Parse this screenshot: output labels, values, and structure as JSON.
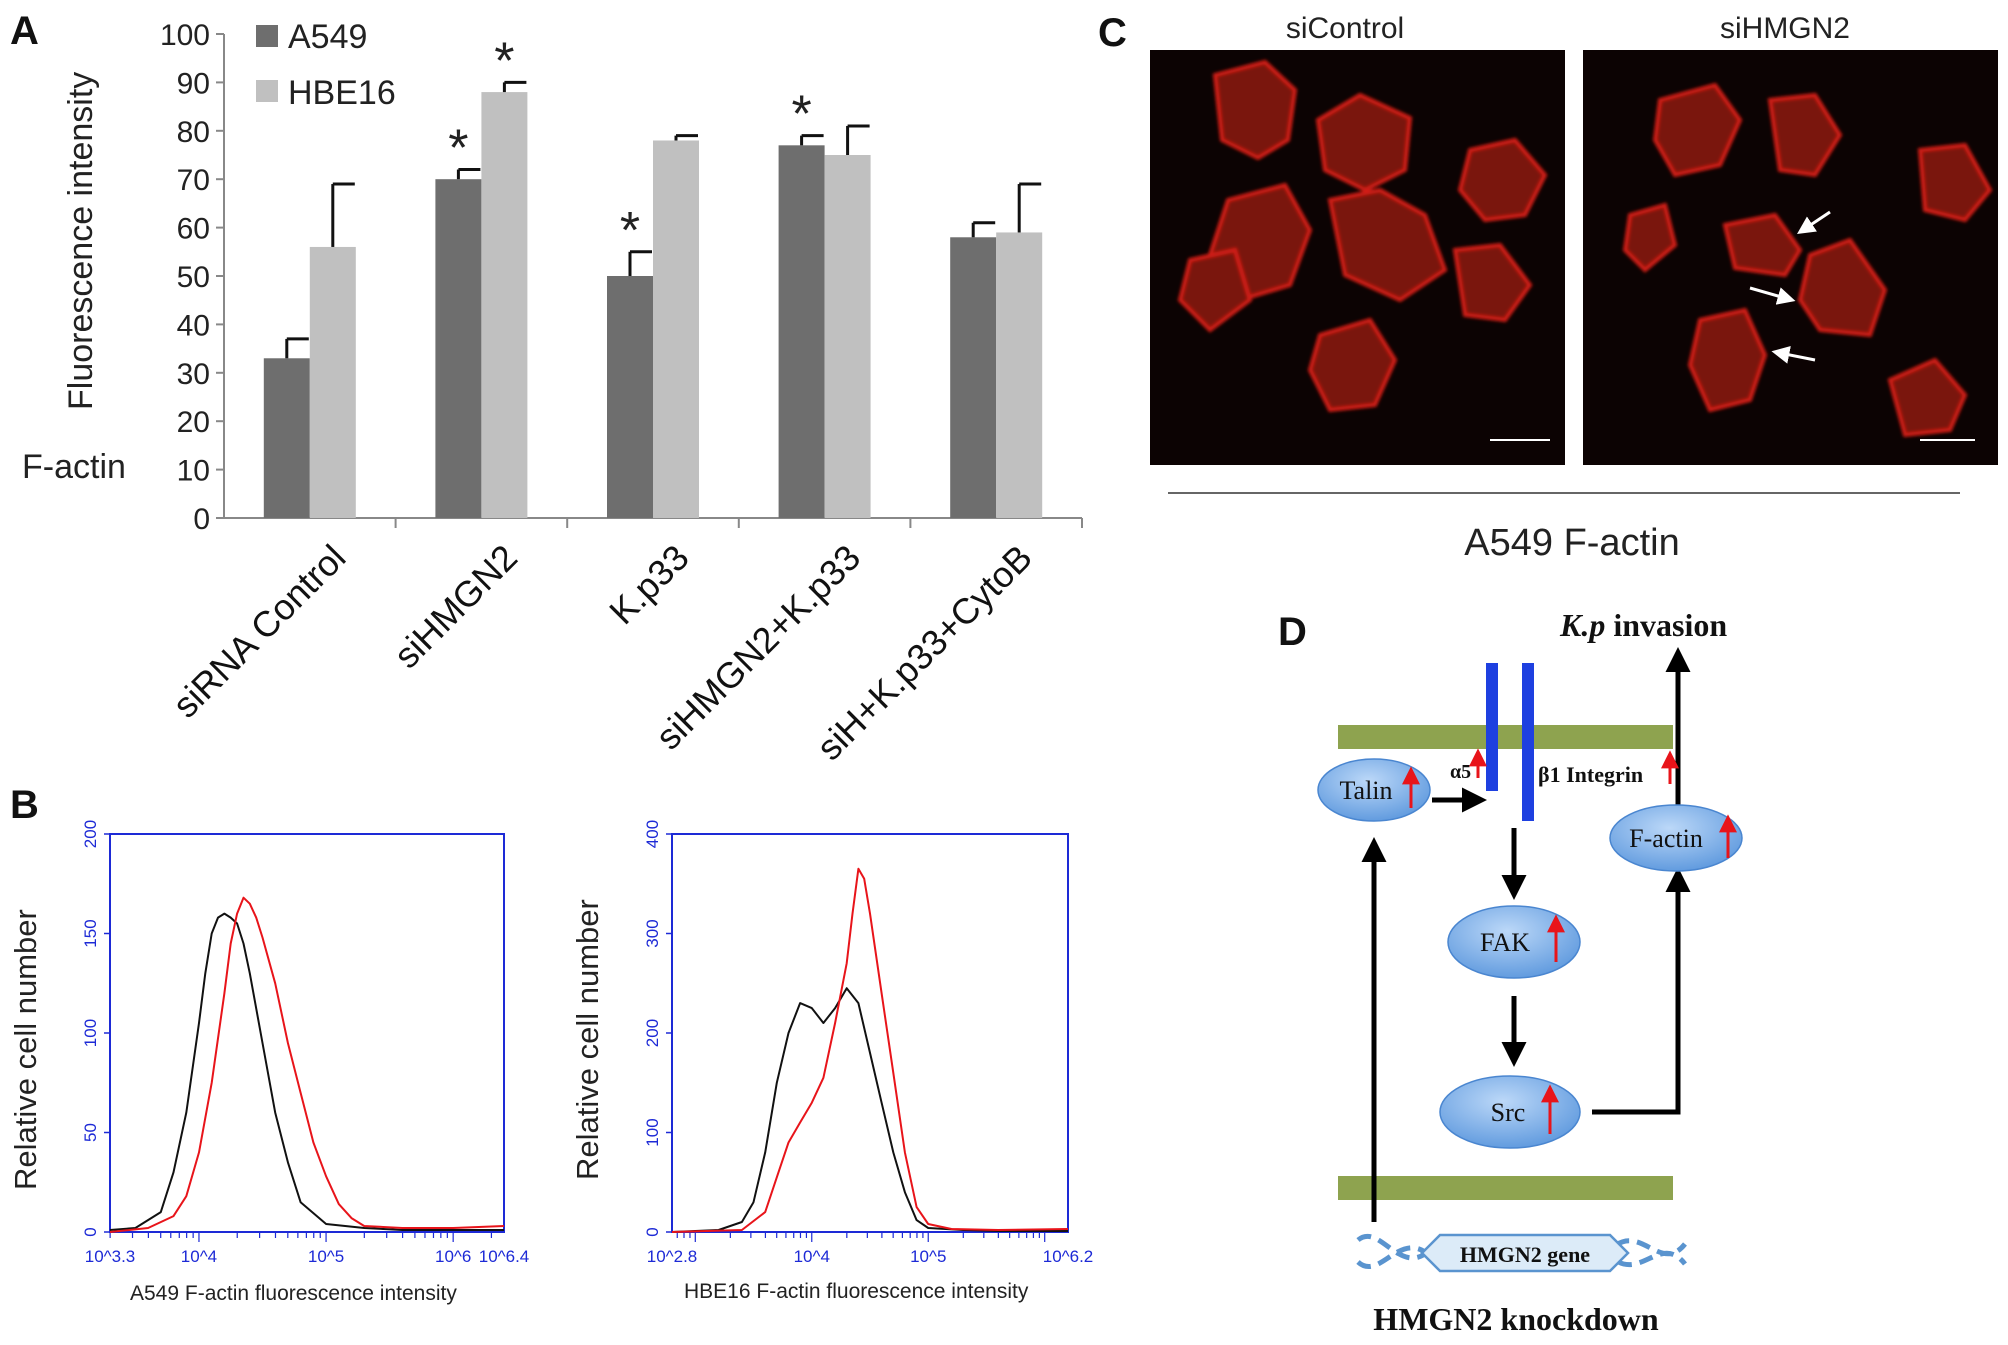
{
  "panels": {
    "a": "A",
    "b": "B",
    "c": "C",
    "d": "D"
  },
  "chart_data": [
    {
      "type": "bar",
      "categories": [
        "siRNA Control",
        "siHMGN2",
        "K.p33",
        "siHMGN2+K.p33",
        "siH+K.p33+CytoB"
      ],
      "series": [
        {
          "name": "A549",
          "values": [
            33,
            70,
            50,
            77,
            58
          ],
          "errors": [
            4,
            2,
            5,
            2,
            3
          ],
          "significant": [
            false,
            true,
            true,
            true,
            false
          ],
          "color": "#6e6e6e"
        },
        {
          "name": "HBE16",
          "values": [
            56,
            88,
            78,
            75,
            59
          ],
          "errors": [
            13,
            2,
            1,
            6,
            10
          ],
          "significant": [
            false,
            true,
            false,
            false,
            false
          ],
          "color": "#c0c0c0"
        }
      ],
      "ylabel": "Fluorescence intensity",
      "ylabel_prefix": "F-actin",
      "ylim": [
        0,
        100
      ],
      "yticks": [
        "0",
        "10",
        "20",
        "30",
        "40",
        "50",
        "60",
        "70",
        "80",
        "90",
        "100"
      ],
      "significance_mark": "*",
      "legend": "top-left",
      "grid": false
    },
    {
      "type": "line",
      "xlabel": "A549 F-actin fluorescence intensity",
      "ylabel": "Relative cell number",
      "xscale": "log",
      "xlim": [
        3.3,
        6.4
      ],
      "ylim": [
        0,
        200
      ],
      "yticks": [
        "0",
        "50",
        "100",
        "150",
        "200"
      ],
      "xticks": [
        {
          "value": 3.3,
          "label": "10^3.3"
        },
        {
          "value": 4,
          "label": "10^4"
        },
        {
          "value": 5,
          "label": "10^5"
        },
        {
          "value": 6,
          "label": "10^6"
        },
        {
          "value": 6.4,
          "label": "10^6.4"
        }
      ],
      "series": [
        {
          "color": "#111111",
          "x": [
            3.3,
            3.5,
            3.7,
            3.8,
            3.9,
            4.0,
            4.05,
            4.1,
            4.15,
            4.2,
            4.25,
            4.3,
            4.35,
            4.4,
            4.5,
            4.6,
            4.7,
            4.8,
            5.0,
            5.3,
            5.6,
            6.0,
            6.4
          ],
          "y": [
            1,
            2,
            10,
            30,
            60,
            105,
            130,
            150,
            158,
            160,
            158,
            155,
            145,
            130,
            95,
            60,
            35,
            15,
            4,
            2,
            1,
            1,
            1
          ]
        },
        {
          "color": "#e8141a",
          "x": [
            3.3,
            3.6,
            3.8,
            3.9,
            4.0,
            4.1,
            4.2,
            4.25,
            4.3,
            4.35,
            4.4,
            4.45,
            4.5,
            4.6,
            4.7,
            4.8,
            4.9,
            5.0,
            5.1,
            5.2,
            5.3,
            5.6,
            6.0,
            6.4
          ],
          "y": [
            0,
            2,
            8,
            18,
            40,
            75,
            120,
            145,
            160,
            168,
            165,
            158,
            148,
            125,
            95,
            70,
            45,
            28,
            14,
            7,
            3,
            2,
            2,
            3
          ]
        }
      ]
    },
    {
      "type": "line",
      "xlabel": "HBE16 F-actin fluorescence intensity",
      "ylabel": "Relative cell number",
      "xscale": "log",
      "xlim": [
        2.8,
        6.2
      ],
      "ylim": [
        0,
        400
      ],
      "yticks": [
        "0",
        "100",
        "200",
        "300",
        "400"
      ],
      "xticks": [
        {
          "value": 2.8,
          "label": "10^2.8"
        },
        {
          "value": 4,
          "label": "10^4"
        },
        {
          "value": 5,
          "label": "10^5"
        },
        {
          "value": 6.2,
          "label": "10^6.2"
        }
      ],
      "series": [
        {
          "color": "#111111",
          "x": [
            2.8,
            3.2,
            3.4,
            3.5,
            3.6,
            3.7,
            3.8,
            3.9,
            4.0,
            4.1,
            4.2,
            4.3,
            4.4,
            4.5,
            4.6,
            4.7,
            4.8,
            4.9,
            5.0,
            5.3,
            5.6,
            6.2
          ],
          "y": [
            0,
            2,
            10,
            30,
            80,
            150,
            200,
            230,
            225,
            210,
            225,
            245,
            230,
            180,
            130,
            80,
            40,
            12,
            4,
            2,
            1,
            1
          ]
        },
        {
          "color": "#e8141a",
          "x": [
            2.8,
            3.4,
            3.6,
            3.7,
            3.8,
            3.9,
            4.0,
            4.1,
            4.2,
            4.3,
            4.35,
            4.4,
            4.45,
            4.5,
            4.6,
            4.7,
            4.8,
            4.9,
            5.0,
            5.2,
            5.6,
            6.2
          ],
          "y": [
            0,
            2,
            20,
            55,
            90,
            110,
            130,
            155,
            210,
            270,
            320,
            365,
            355,
            320,
            240,
            160,
            80,
            25,
            8,
            3,
            2,
            3
          ]
        }
      ]
    }
  ],
  "micrographs": {
    "left_label": "siControl",
    "right_label": "siHMGN2",
    "caption": "A549 F-actin",
    "stain_color": "#d11e12"
  },
  "pathway": {
    "title_italic": "K.p",
    "title_rest": " invasion",
    "alpha5": "α5",
    "beta1": "β1 Integrin",
    "gene": "HMGN2 gene",
    "bottom": "HMGN2 knockdown",
    "nodes": [
      "Talin",
      "F-actin",
      "FAK",
      "Src"
    ],
    "membrane_color": "#8ea34f",
    "receptor_color": "#1e40e0",
    "node_color": "#6aa6e8",
    "up_arrow_color": "#e8141a"
  }
}
